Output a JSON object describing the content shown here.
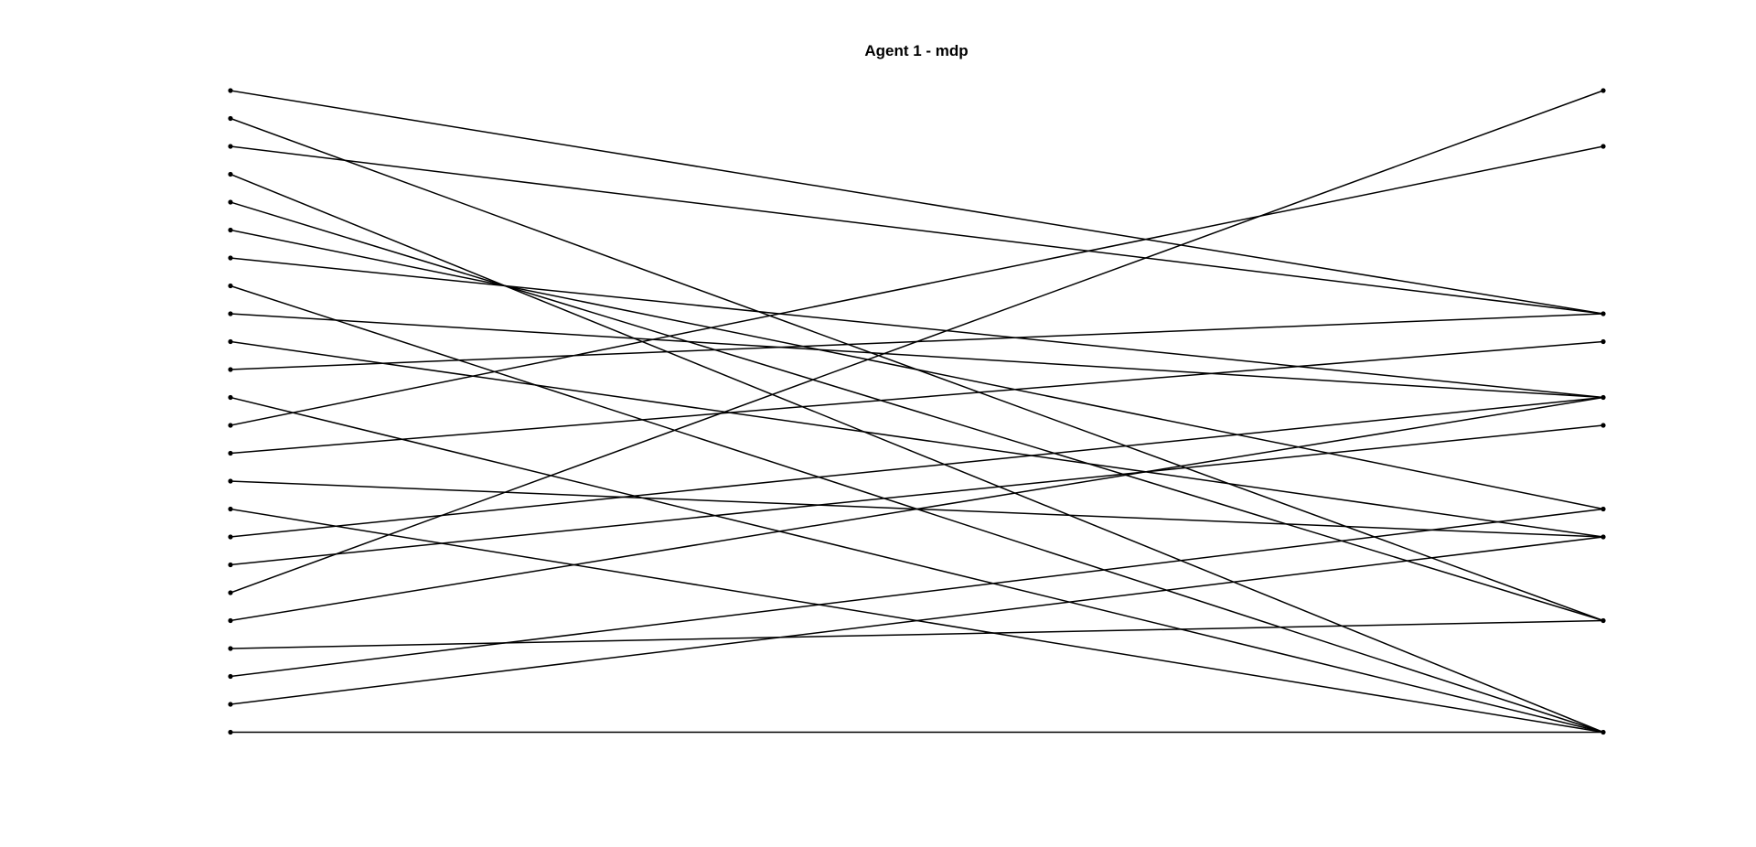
{
  "chart_data": {
    "type": "bipartite-matching",
    "title": "Agent 1 - mdp",
    "left_count": 24,
    "right_count": 24,
    "edges": [
      {
        "from": 0,
        "to": 8
      },
      {
        "from": 1,
        "to": 19
      },
      {
        "from": 2,
        "to": 8
      },
      {
        "from": 3,
        "to": 23
      },
      {
        "from": 4,
        "to": 19
      },
      {
        "from": 5,
        "to": 15
      },
      {
        "from": 6,
        "to": 11
      },
      {
        "from": 7,
        "to": 23
      },
      {
        "from": 8,
        "to": 11
      },
      {
        "from": 9,
        "to": 16
      },
      {
        "from": 10,
        "to": 8
      },
      {
        "from": 11,
        "to": 23
      },
      {
        "from": 12,
        "to": 2
      },
      {
        "from": 13,
        "to": 9
      },
      {
        "from": 14,
        "to": 16
      },
      {
        "from": 15,
        "to": 23
      },
      {
        "from": 16,
        "to": 11
      },
      {
        "from": 17,
        "to": 12
      },
      {
        "from": 18,
        "to": 0
      },
      {
        "from": 19,
        "to": 11
      },
      {
        "from": 20,
        "to": 19
      },
      {
        "from": 21,
        "to": 15
      },
      {
        "from": 22,
        "to": 16
      },
      {
        "from": 23,
        "to": 23
      }
    ],
    "line_color": "#000000",
    "grid": false,
    "legend": "none"
  }
}
